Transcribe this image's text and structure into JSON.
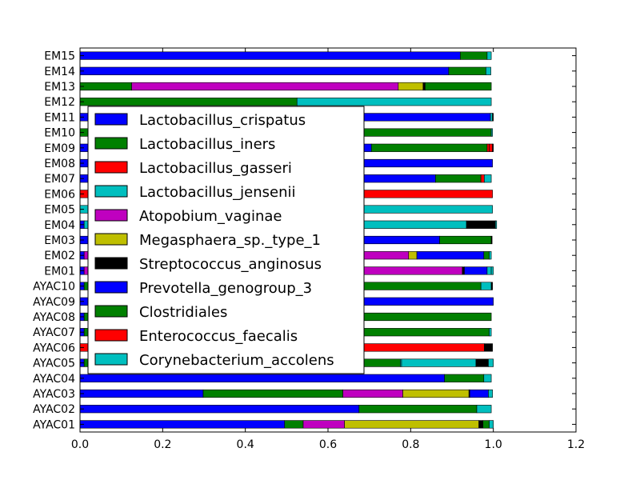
{
  "chart_data": {
    "type": "bar",
    "orientation": "horizontal",
    "stacked": true,
    "title": "",
    "xlabel": "",
    "ylabel": "",
    "xlim": [
      0,
      1.2
    ],
    "xticks": [
      "0.0",
      "0.2",
      "0.4",
      "0.6",
      "0.8",
      "1.0",
      "1.2"
    ],
    "grid": false,
    "legend_position": "left",
    "categories": [
      "AYAC01",
      "AYAC02",
      "AYAC03",
      "AYAC04",
      "AYAC05",
      "AYAC06",
      "AYAC07",
      "AYAC08",
      "AYAC09",
      "AYAC10",
      "EM01",
      "EM02",
      "EM03",
      "EM04",
      "EM05",
      "EM06",
      "EM07",
      "EM08",
      "EM09",
      "EM10",
      "EM11",
      "EM12",
      "EM13",
      "EM14",
      "EM15"
    ],
    "series": [
      {
        "name": "Lactobacillus_crispatus",
        "color": "#0000ff",
        "values": [
          0.495,
          0.675,
          0.298,
          0.882,
          0.01,
          0,
          0.01,
          0.01,
          1.0,
          0.01,
          0.01,
          0.01,
          0.87,
          0.01,
          0,
          0,
          0.86,
          0.998,
          0.705,
          0,
          0.993,
          0,
          0,
          0.892,
          0.92
        ]
      },
      {
        "name": "Lactobacillus_iners",
        "color": "#008000",
        "values": [
          0.045,
          0.285,
          0.338,
          0.095,
          0.765,
          0,
          0.98,
          0.985,
          0,
          0.96,
          0,
          0,
          0.125,
          0,
          0,
          0,
          0.11,
          0,
          0.28,
          0.995,
          0,
          0.525,
          0.125,
          0.09,
          0.065
        ]
      },
      {
        "name": "Lactobacillus_gasseri",
        "color": "#ff0000",
        "values": [
          0,
          0,
          0,
          0,
          0,
          0.978,
          0,
          0,
          0,
          0,
          0,
          0,
          0,
          0,
          0,
          0.998,
          0.008,
          0,
          0.005,
          0,
          0,
          0,
          0,
          0,
          0
        ]
      },
      {
        "name": "Lactobacillus_jensenii",
        "color": "#00bfbf",
        "values": [
          0,
          0,
          0,
          0,
          0.003,
          0,
          0,
          0,
          0,
          0,
          0,
          0,
          0,
          0.925,
          0.998,
          0,
          0,
          0,
          0,
          0.003,
          0,
          0.47,
          0,
          0.012,
          0.01
        ]
      },
      {
        "name": "Atopobium_vaginae",
        "color": "#bf00bf",
        "values": [
          0.1,
          0,
          0.145,
          0,
          0,
          0,
          0,
          0,
          0,
          0,
          0.915,
          0.785,
          0,
          0,
          0,
          0,
          0,
          0,
          0,
          0,
          0,
          0,
          0.645,
          0,
          0
        ]
      },
      {
        "name": "Megasphaera_sp._type_1",
        "color": "#bfbf00",
        "values": [
          0.325,
          0,
          0.16,
          0,
          0,
          0,
          0,
          0,
          0,
          0,
          0,
          0.02,
          0,
          0,
          0,
          0,
          0,
          0,
          0,
          0,
          0,
          0,
          0.06,
          0,
          0
        ]
      },
      {
        "name": "Streptococcus_anginosus",
        "color": "#000000",
        "values": [
          0.01,
          0,
          0.002,
          0,
          0,
          0.02,
          0,
          0,
          0,
          0,
          0.005,
          0,
          0.002,
          0.07,
          0,
          0,
          0,
          0,
          0,
          0,
          0,
          0,
          0.005,
          0,
          0
        ]
      },
      {
        "name": "Prevotella_genogroup_3",
        "color": "#0000ff",
        "values": [
          0,
          0,
          0.045,
          0,
          0,
          0,
          0,
          0,
          0,
          0,
          0.055,
          0.162,
          0,
          0,
          0,
          0,
          0,
          0,
          0,
          0,
          0,
          0,
          0,
          0,
          0
        ]
      },
      {
        "name": "Clostridiales",
        "color": "#008000",
        "values": [
          0.015,
          0,
          0,
          0,
          0,
          0,
          0,
          0,
          0,
          0,
          0,
          0.013,
          0,
          0,
          0,
          0,
          0,
          0,
          0,
          0,
          0,
          0,
          0.16,
          0,
          0
        ]
      },
      {
        "name": "Enterococcus_faecalis",
        "color": "#ff0000",
        "values": [
          0,
          0,
          0,
          0,
          0,
          0,
          0,
          0,
          0,
          0,
          0,
          0,
          0,
          0,
          0,
          0,
          0,
          0,
          0.008,
          0,
          0,
          0,
          0,
          0,
          0
        ]
      },
      {
        "name": "Corynebacterium_accolens",
        "color": "#00bfbf",
        "values": [
          0.01,
          0.035,
          0.01,
          0.018,
          0.18,
          0,
          0.005,
          0,
          0,
          0.025,
          0.01,
          0.005,
          0,
          0,
          0,
          0,
          0.017,
          0,
          0,
          0,
          0.005,
          0,
          0,
          0,
          0
        ]
      }
    ],
    "extra_segments": [
      {
        "category": "AYAC05",
        "color": "#000000",
        "value": 0.03
      },
      {
        "category": "AYAC05",
        "color": "#00bfbf",
        "value": 0.012
      },
      {
        "category": "AYAC10",
        "color": "#000000",
        "value": 0.003
      },
      {
        "category": "EM01",
        "color": "#00bfbf",
        "value": 0.005
      },
      {
        "category": "EM04",
        "color": "#00bfbf",
        "value": 0.003
      },
      {
        "category": "EM11",
        "color": "#000000",
        "value": 0.002
      },
      {
        "category": "EM09",
        "color": "#000000",
        "value": 0.002
      }
    ]
  }
}
